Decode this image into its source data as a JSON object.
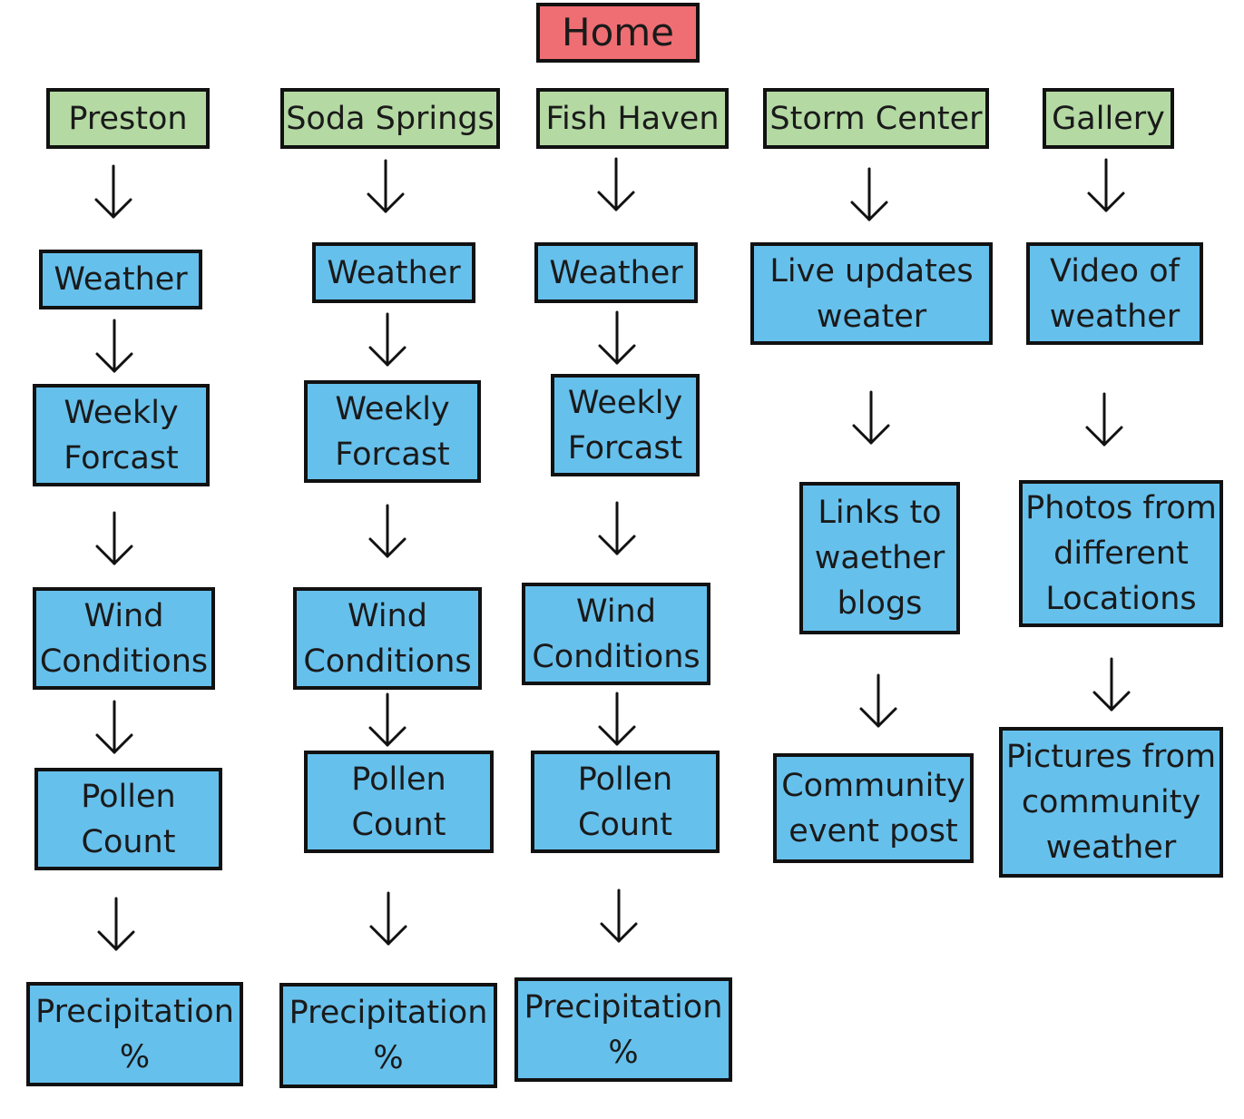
{
  "home": {
    "label": "Home"
  },
  "columns": [
    {
      "page": "Preston",
      "children": [
        "Weather",
        "Weekly\nForcast",
        "Wind\nConditions",
        "Pollen\nCount",
        "Precipitation\n%"
      ]
    },
    {
      "page": "Soda Springs",
      "children": [
        "Weather",
        "Weekly\nForcast",
        "Wind\nConditions",
        "Pollen\nCount",
        "Precipitation\n%"
      ]
    },
    {
      "page": "Fish Haven",
      "children": [
        "Weather",
        "Weekly\nForcast",
        "Wind\nConditions",
        "Pollen\nCount",
        "Precipitation\n%"
      ]
    },
    {
      "page": "Storm Center",
      "children": [
        "Live updates\nweater",
        "Links to\nwaether\nblogs",
        "Community\nevent post"
      ]
    },
    {
      "page": "Gallery",
      "children": [
        "Video of\nweather",
        "Photos from\ndifferent\nLocations",
        "Pictures from\ncommunity\nweather"
      ]
    }
  ],
  "colors": {
    "home": "#ee6e73",
    "page": "#b4d9a3",
    "subpage": "#66c0ec"
  }
}
